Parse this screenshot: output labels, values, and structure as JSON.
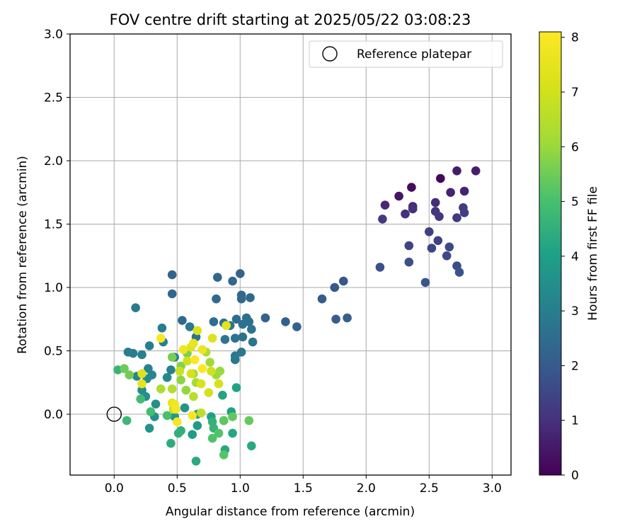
{
  "chart_data": {
    "type": "scatter",
    "title": "FOV centre drift starting at 2025/05/22 03:08:23",
    "xlabel": "Angular distance from reference (arcmin)",
    "ylabel": "Rotation from reference (arcmin)",
    "xlim": [
      -0.35,
      3.15
    ],
    "ylim": [
      -0.48,
      3.0
    ],
    "xticks": [
      "0.0",
      "0.5",
      "1.0",
      "1.5",
      "2.0",
      "2.5",
      "3.0"
    ],
    "yticks": [
      "0.0",
      "0.5",
      "1.0",
      "1.5",
      "2.0",
      "2.5",
      "3.0"
    ],
    "grid": true,
    "legend": {
      "placement": "top-right",
      "label": "Reference platepar"
    },
    "reference_point": [
      0,
      0
    ],
    "colorbar": {
      "label": "Hours from first FF file",
      "range": [
        0,
        8.1
      ],
      "ticks": [
        "0",
        "1",
        "2",
        "3",
        "4",
        "5",
        "6",
        "7",
        "8"
      ],
      "colormap": "viridis"
    },
    "points": [
      [
        2.59,
        1.86,
        0.15
      ],
      [
        2.36,
        1.79,
        0.25
      ],
      [
        2.26,
        1.72,
        0.4
      ],
      [
        2.72,
        1.92,
        0.55
      ],
      [
        2.87,
        1.92,
        0.6
      ],
      [
        2.67,
        1.75,
        0.7
      ],
      [
        2.78,
        1.76,
        0.75
      ],
      [
        2.15,
        1.65,
        0.8
      ],
      [
        2.37,
        1.64,
        0.85
      ],
      [
        2.55,
        1.67,
        0.9
      ],
      [
        2.31,
        1.58,
        0.95
      ],
      [
        2.37,
        1.62,
        1.0
      ],
      [
        2.55,
        1.6,
        1.05
      ],
      [
        2.58,
        1.56,
        1.1
      ],
      [
        2.72,
        1.55,
        1.15
      ],
      [
        2.13,
        1.54,
        1.2
      ],
      [
        2.77,
        1.63,
        1.25
      ],
      [
        2.78,
        1.59,
        1.3
      ],
      [
        2.5,
        1.44,
        1.35
      ],
      [
        2.57,
        1.37,
        1.4
      ],
      [
        2.34,
        1.33,
        1.45
      ],
      [
        2.52,
        1.31,
        1.5
      ],
      [
        2.66,
        1.32,
        1.55
      ],
      [
        2.64,
        1.25,
        1.6
      ],
      [
        2.72,
        1.17,
        1.65
      ],
      [
        2.34,
        1.2,
        1.7
      ],
      [
        2.11,
        1.16,
        1.75
      ],
      [
        2.74,
        1.12,
        1.8
      ],
      [
        2.47,
        1.04,
        1.85
      ],
      [
        1.82,
        1.05,
        1.9
      ],
      [
        1.75,
        1.0,
        1.95
      ],
      [
        1.65,
        0.91,
        2.0
      ],
      [
        1.76,
        0.75,
        2.05
      ],
      [
        1.85,
        0.76,
        2.1
      ],
      [
        1.45,
        0.69,
        2.15
      ],
      [
        1.36,
        0.73,
        2.2
      ],
      [
        1.2,
        0.76,
        2.2
      ],
      [
        0.46,
        1.1,
        2.25
      ],
      [
        1.0,
        1.11,
        2.25
      ],
      [
        0.82,
        1.08,
        2.3
      ],
      [
        0.94,
        1.05,
        2.3
      ],
      [
        0.46,
        0.95,
        2.35
      ],
      [
        1.01,
        0.94,
        2.35
      ],
      [
        1.08,
        0.92,
        2.4
      ],
      [
        1.01,
        0.91,
        2.4
      ],
      [
        0.81,
        0.91,
        2.45
      ],
      [
        0.54,
        0.74,
        2.45
      ],
      [
        0.79,
        0.73,
        2.5
      ],
      [
        0.97,
        0.75,
        2.5
      ],
      [
        1.05,
        0.76,
        2.55
      ],
      [
        1.07,
        0.73,
        2.55
      ],
      [
        1.02,
        0.71,
        2.6
      ],
      [
        0.87,
        0.72,
        2.6
      ],
      [
        0.92,
        0.7,
        2.65
      ],
      [
        1.09,
        0.67,
        2.65
      ],
      [
        0.96,
        0.6,
        2.7
      ],
      [
        1.02,
        0.61,
        2.7
      ],
      [
        1.1,
        0.57,
        2.75
      ],
      [
        0.65,
        0.61,
        2.75
      ],
      [
        0.88,
        0.59,
        2.8
      ],
      [
        1.01,
        0.49,
        2.8
      ],
      [
        0.96,
        0.46,
        2.85
      ],
      [
        0.96,
        0.43,
        2.85
      ],
      [
        0.17,
        0.84,
        2.9
      ],
      [
        0.6,
        0.69,
        2.9
      ],
      [
        0.38,
        0.68,
        2.95
      ],
      [
        0.39,
        0.57,
        3.0
      ],
      [
        0.28,
        0.54,
        3.0
      ],
      [
        0.11,
        0.49,
        3.05
      ],
      [
        0.15,
        0.48,
        3.05
      ],
      [
        0.22,
        0.47,
        3.1
      ],
      [
        0.48,
        0.45,
        3.1
      ],
      [
        0.45,
        0.35,
        3.15
      ],
      [
        0.27,
        0.36,
        3.2
      ],
      [
        0.3,
        0.31,
        3.25
      ],
      [
        0.18,
        0.3,
        3.3
      ],
      [
        0.42,
        0.29,
        3.35
      ],
      [
        0.26,
        0.28,
        3.4
      ],
      [
        0.22,
        0.19,
        3.45
      ],
      [
        0.25,
        0.14,
        3.5
      ],
      [
        0.33,
        0.08,
        3.55
      ],
      [
        0.32,
        -0.02,
        3.6
      ],
      [
        0.28,
        -0.11,
        3.65
      ],
      [
        0.56,
        0.05,
        3.7
      ],
      [
        0.66,
        0.0,
        3.75
      ],
      [
        0.48,
        -0.02,
        3.8
      ],
      [
        0.66,
        -0.09,
        3.85
      ],
      [
        0.62,
        -0.16,
        3.9
      ],
      [
        0.77,
        -0.02,
        3.95
      ],
      [
        0.87,
        -0.05,
        4.0
      ],
      [
        0.93,
        0.02,
        4.05
      ],
      [
        0.97,
        0.21,
        4.1
      ],
      [
        0.86,
        0.15,
        4.15
      ],
      [
        0.94,
        -0.15,
        4.2
      ],
      [
        0.88,
        -0.28,
        4.25
      ],
      [
        1.09,
        -0.25,
        4.3
      ],
      [
        0.65,
        -0.37,
        4.35
      ],
      [
        0.45,
        -0.23,
        4.4
      ],
      [
        0.53,
        -0.13,
        4.45
      ],
      [
        0.51,
        -0.15,
        4.5
      ],
      [
        0.78,
        -0.06,
        4.55
      ],
      [
        0.79,
        -0.11,
        4.6
      ],
      [
        0.03,
        0.35,
        4.65
      ],
      [
        0.1,
        -0.05,
        4.75
      ],
      [
        0.21,
        0.12,
        4.85
      ],
      [
        0.29,
        0.02,
        4.95
      ],
      [
        0.42,
        -0.01,
        5.0
      ],
      [
        0.78,
        -0.19,
        5.1
      ],
      [
        0.83,
        -0.15,
        5.15
      ],
      [
        0.87,
        -0.32,
        5.2
      ],
      [
        0.87,
        -0.05,
        5.3
      ],
      [
        0.94,
        -0.02,
        5.35
      ],
      [
        1.07,
        -0.05,
        5.4
      ],
      [
        0.08,
        0.36,
        5.45
      ],
      [
        0.12,
        0.31,
        5.55
      ],
      [
        0.46,
        0.45,
        5.6
      ],
      [
        0.58,
        0.48,
        5.7
      ],
      [
        0.53,
        0.38,
        5.75
      ],
      [
        0.53,
        0.27,
        5.85
      ],
      [
        0.57,
        0.19,
        5.95
      ],
      [
        0.84,
        0.34,
        6.0
      ],
      [
        0.81,
        0.31,
        6.05
      ],
      [
        0.76,
        0.41,
        6.1
      ],
      [
        0.63,
        0.32,
        6.15
      ],
      [
        0.65,
        0.25,
        6.2
      ],
      [
        0.73,
        0.49,
        6.3
      ],
      [
        0.37,
        0.2,
        6.35
      ],
      [
        0.46,
        0.2,
        6.45
      ],
      [
        0.63,
        0.14,
        6.55
      ],
      [
        0.69,
        0.01,
        6.65
      ],
      [
        0.47,
        0.04,
        6.75
      ],
      [
        0.52,
        0.34,
        6.85
      ],
      [
        0.58,
        0.42,
        6.95
      ],
      [
        0.77,
        0.34,
        7.0
      ],
      [
        0.75,
        0.17,
        7.05
      ],
      [
        0.83,
        0.24,
        7.1
      ],
      [
        0.61,
        0.32,
        7.15
      ],
      [
        0.69,
        0.24,
        7.2
      ],
      [
        0.66,
        0.66,
        7.25
      ],
      [
        0.78,
        0.6,
        7.3
      ],
      [
        0.22,
        0.32,
        7.35
      ],
      [
        0.61,
        0.53,
        7.4
      ],
      [
        0.89,
        0.7,
        7.45
      ],
      [
        0.22,
        0.24,
        7.5
      ],
      [
        0.46,
        0.09,
        7.55
      ],
      [
        0.63,
        0.56,
        7.6
      ],
      [
        0.7,
        0.51,
        7.7
      ],
      [
        0.55,
        0.51,
        7.75
      ],
      [
        0.48,
        0.08,
        7.8
      ],
      [
        0.49,
        0.04,
        7.85
      ],
      [
        0.5,
        -0.06,
        7.9
      ],
      [
        0.62,
        -0.01,
        7.95
      ],
      [
        0.37,
        0.6,
        8.0
      ],
      [
        0.64,
        0.43,
        8.05
      ],
      [
        0.7,
        0.36,
        8.1
      ]
    ]
  }
}
